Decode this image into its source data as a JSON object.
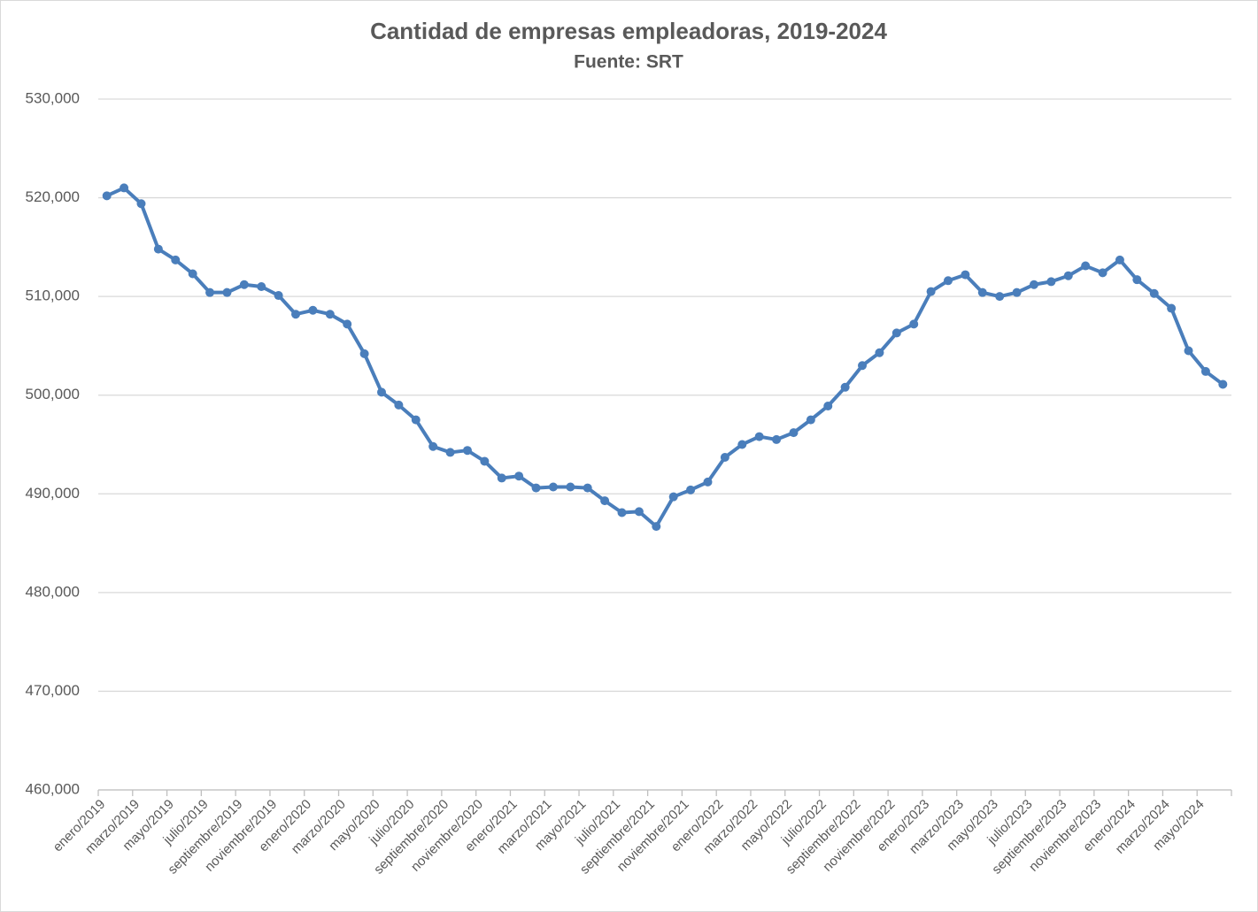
{
  "chart_data": {
    "type": "line",
    "title": "Cantidad de empresas empleadoras, 2019-2024",
    "subtitle": "Fuente: SRT",
    "categories": [
      "enero/2019",
      null,
      "marzo/2019",
      null,
      "mayo/2019",
      null,
      "julio/2019",
      null,
      "septiembre/2019",
      null,
      "noviembre/2019",
      null,
      "enero/2020",
      null,
      "marzo/2020",
      null,
      "mayo/2020",
      null,
      "julio/2020",
      null,
      "septiembre/2020",
      null,
      "noviembre/2020",
      null,
      "enero/2021",
      null,
      "marzo/2021",
      null,
      "mayo/2021",
      null,
      "julio/2021",
      null,
      "septiembre/2021",
      null,
      "noviembre/2021",
      null,
      "enero/2022",
      null,
      "marzo/2022",
      null,
      "mayo/2022",
      null,
      "julio/2022",
      null,
      "septiembre/2022",
      null,
      "noviembre/2022",
      null,
      "enero/2023",
      null,
      "marzo/2023",
      null,
      "mayo/2023",
      null,
      "julio/2023",
      null,
      "septiembre/2023",
      null,
      "noviembre/2023",
      null,
      "enero/2024",
      null,
      "marzo/2024",
      null,
      "mayo/2024",
      null
    ],
    "series": [
      {
        "color": "#4a7ebb",
        "values": [
          520200,
          521000,
          519400,
          514800,
          513700,
          512300,
          510400,
          510400,
          511200,
          511000,
          510100,
          508200,
          508600,
          508200,
          507200,
          504200,
          500300,
          499000,
          497500,
          494800,
          494200,
          494400,
          493300,
          491600,
          491800,
          490600,
          490700,
          490700,
          490600,
          489300,
          488100,
          488200,
          486700,
          489700,
          490400,
          491200,
          493700,
          495000,
          495800,
          495500,
          496200,
          497500,
          498900,
          500800,
          503000,
          504300,
          506300,
          507200,
          510500,
          511600,
          512200,
          510400,
          510000,
          510400,
          511200,
          511500,
          512100,
          513100,
          512400,
          513700,
          511700,
          510300,
          508800,
          504500,
          502400,
          501100
        ]
      }
    ],
    "ylim": [
      460000,
      530000
    ],
    "yticks": [
      {
        "value": 460000,
        "label": "460,000"
      },
      {
        "value": 470000,
        "label": "470,000"
      },
      {
        "value": 480000,
        "label": "480,000"
      },
      {
        "value": 490000,
        "label": "490,000"
      },
      {
        "value": 500000,
        "label": "500,000"
      },
      {
        "value": 510000,
        "label": "510,000"
      },
      {
        "value": 520000,
        "label": "520,000"
      },
      {
        "value": 530000,
        "label": "530,000"
      }
    ],
    "grid": true
  }
}
